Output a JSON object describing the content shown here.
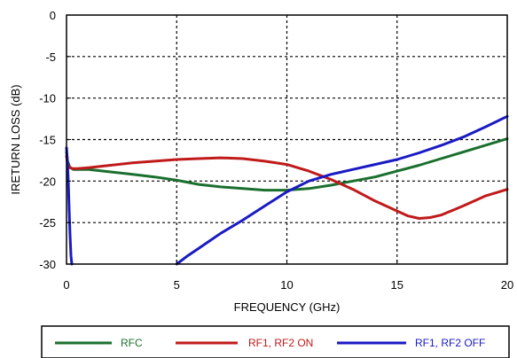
{
  "chart_data": {
    "type": "line",
    "xlabel": "FREQUENCY (GHz)",
    "ylabel": "IRETURN LOSS (dB)",
    "xlim": [
      0,
      20
    ],
    "ylim": [
      -30,
      0
    ],
    "xticks": [
      0,
      5,
      10,
      15,
      20
    ],
    "yticks": [
      0,
      -5,
      -10,
      -15,
      -20,
      -25,
      -30
    ],
    "grid": true,
    "legend_position": "bottom",
    "series": [
      {
        "name": "RFC",
        "color": "#1b6f2e",
        "x": [
          0,
          0.05,
          0.15,
          0.3,
          0.5,
          1,
          2,
          3,
          4,
          5,
          6,
          7,
          8,
          9,
          10,
          11,
          12,
          13,
          14,
          15,
          16,
          17,
          18,
          19,
          20
        ],
        "y": [
          -16.5,
          -17.6,
          -18.3,
          -18.6,
          -18.6,
          -18.6,
          -18.9,
          -19.2,
          -19.5,
          -19.9,
          -20.4,
          -20.7,
          -20.9,
          -21.1,
          -21.1,
          -20.9,
          -20.5,
          -20.0,
          -19.5,
          -18.8,
          -18.1,
          -17.3,
          -16.5,
          -15.7,
          -14.9
        ]
      },
      {
        "name": "RF1, RF2 ON",
        "color": "#c01a1a",
        "x": [
          0,
          0.05,
          0.15,
          0.3,
          0.5,
          1,
          2,
          3,
          4,
          5,
          6,
          7,
          8,
          9,
          10,
          11,
          12,
          13,
          14,
          15,
          15.5,
          16,
          16.5,
          17,
          18,
          19,
          20
        ],
        "y": [
          -17.0,
          -17.9,
          -18.4,
          -18.5,
          -18.5,
          -18.4,
          -18.1,
          -17.8,
          -17.6,
          -17.4,
          -17.3,
          -17.2,
          -17.3,
          -17.6,
          -18.0,
          -18.8,
          -19.8,
          -21.0,
          -22.4,
          -23.6,
          -24.2,
          -24.5,
          -24.4,
          -24.1,
          -23.0,
          -21.8,
          -21.0
        ]
      },
      {
        "name": "RF1, RF2 OFF",
        "color": "#1a1ac4",
        "x": [
          0,
          0.04,
          0.08,
          0.12,
          0.16,
          0.2,
          0.24,
          5,
          5.5,
          6,
          6.5,
          7,
          8,
          9,
          10,
          11,
          12,
          13,
          14,
          15,
          16,
          17,
          18,
          19,
          20
        ],
        "y": [
          -16.0,
          -17.5,
          -20.0,
          -23.5,
          -26.5,
          -29.0,
          -30.0,
          -30.0,
          -29.0,
          -28.1,
          -27.2,
          -26.3,
          -24.7,
          -23.0,
          -21.3,
          -20.0,
          -19.2,
          -18.6,
          -18.0,
          -17.4,
          -16.6,
          -15.7,
          -14.7,
          -13.5,
          -12.2
        ]
      }
    ]
  }
}
